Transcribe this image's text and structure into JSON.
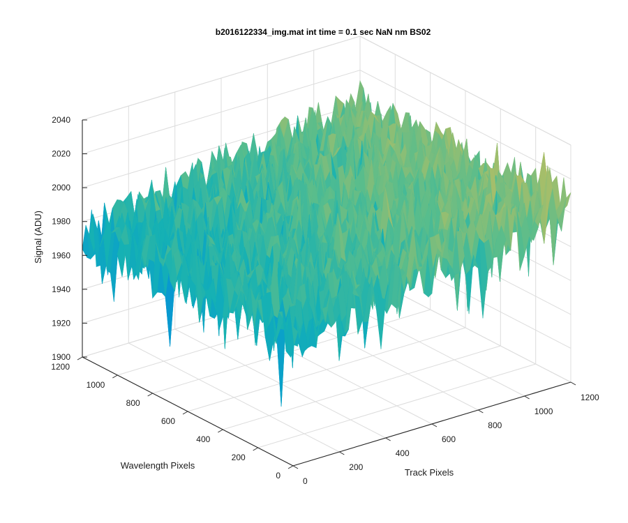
{
  "chart_data": {
    "type": "surface",
    "title": "b2016122334_img.mat int time = 0.1 sec  NaN nm BS02",
    "xlabel": "Track Pixels",
    "ylabel": "Wavelength Pixels",
    "zlabel": "Signal (ADU)",
    "xlim": [
      0,
      1200
    ],
    "ylim": [
      0,
      1200
    ],
    "zlim": [
      1900,
      2040
    ],
    "x_ticks": [
      0,
      200,
      400,
      600,
      800,
      1000,
      1200
    ],
    "y_ticks": [
      0,
      200,
      400,
      600,
      800,
      1000,
      1200
    ],
    "z_ticks": [
      1900,
      1920,
      1940,
      1960,
      1980,
      2000,
      2020,
      2040
    ],
    "grid": true,
    "colormap": "parula",
    "surface_range": [
      1905,
      2032
    ],
    "surface_typical_range": [
      1950,
      2010
    ],
    "colors": {
      "low": "#1a7fd6",
      "mid": "#2ab5a8",
      "high": "#e3c43d",
      "axis": "#262626",
      "grid": "#dcdcdc"
    }
  }
}
